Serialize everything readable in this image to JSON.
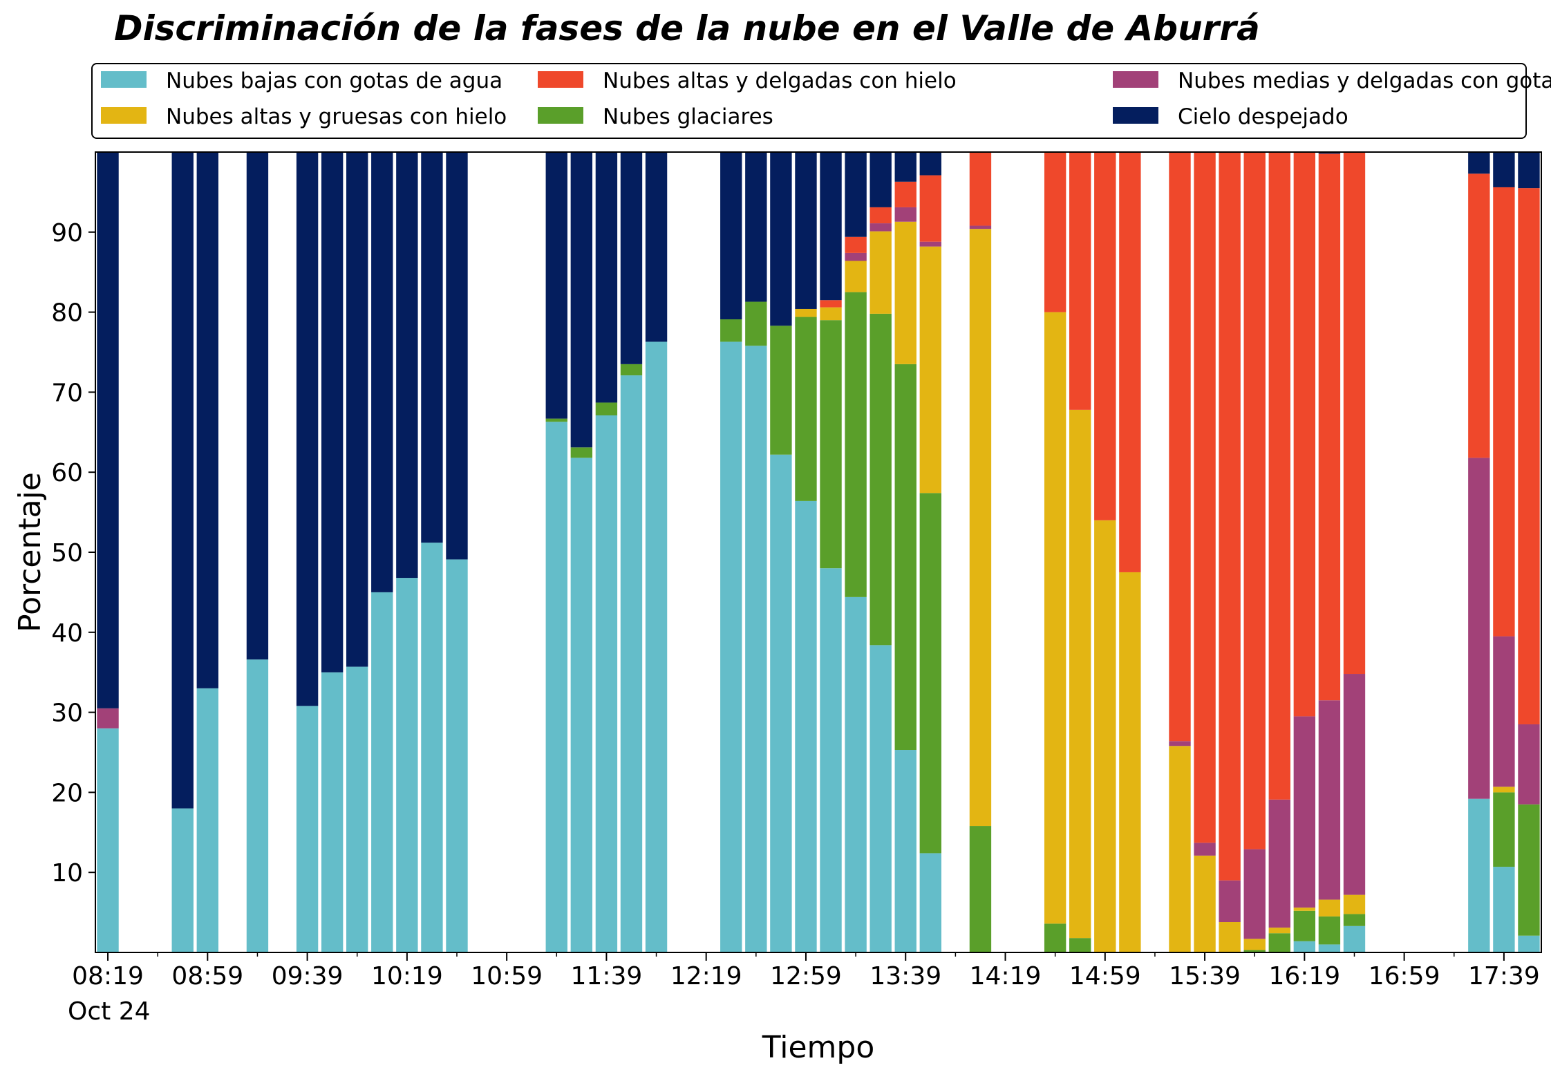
{
  "chart_data": {
    "type": "bar",
    "stacked": true,
    "title": "Discriminación de la fases de la nube en el Valle de Aburrá",
    "xlabel": "Tiempo",
    "ylabel": "Porcentaje",
    "ylim": [
      0,
      100
    ],
    "yticks": [
      10,
      20,
      30,
      40,
      50,
      60,
      70,
      80,
      90
    ],
    "xlim": [
      "08:14",
      "17:54"
    ],
    "bar_interval_minutes": 10,
    "xticks": [
      "08:19",
      "08:59",
      "09:39",
      "10:19",
      "10:59",
      "11:39",
      "12:19",
      "12:59",
      "13:39",
      "14:19",
      "14:59",
      "15:39",
      "16:19",
      "16:59",
      "17:39"
    ],
    "x_date_label": "Oct 24",
    "legend": {
      "placement": "top",
      "columns": 3
    },
    "grid": false,
    "series": [
      {
        "name": "Nubes bajas con gotas de agua",
        "color": "#64bdc9"
      },
      {
        "name": "Nubes glaciares",
        "color": "#5a9f2a"
      },
      {
        "name": "Nubes altas y gruesas con hielo",
        "color": "#e3b513"
      },
      {
        "name": "Nubes medias y delgadas con gotas de agua",
        "color": "#a24178"
      },
      {
        "name": "Nubes altas y delgadas con hielo",
        "color": "#ef482b"
      },
      {
        "name": "Cielo despejado",
        "color": "#041e5e"
      }
    ],
    "legend_order": [
      0,
      2,
      4,
      1,
      3,
      5
    ],
    "times": [
      "08:19",
      "08:39",
      "08:49",
      "08:59",
      "09:19",
      "09:29",
      "09:39",
      "09:49",
      "09:59",
      "10:09",
      "10:19",
      "10:29",
      "10:39",
      "10:49",
      "10:59",
      "11:09",
      "11:19",
      "11:29",
      "11:39",
      "11:49",
      "11:59",
      "12:09",
      "12:19",
      "12:29",
      "12:39",
      "12:49",
      "12:59",
      "13:09",
      "13:19",
      "13:29",
      "13:39",
      "13:49",
      "13:59",
      "14:09",
      "14:19",
      "14:29",
      "14:39",
      "14:49",
      "14:59",
      "15:09",
      "15:19",
      "15:29",
      "15:39",
      "15:49",
      "15:59",
      "16:09",
      "16:19",
      "16:29",
      "16:39",
      "16:49",
      "16:59",
      "17:09",
      "17:29",
      "17:39",
      "17:49"
    ],
    "values": [
      [
        28,
        0,
        0,
        2.5,
        0,
        69.5
      ],
      [
        18,
        0,
        0,
        0,
        0,
        82
      ],
      [
        33,
        0,
        0,
        0,
        0,
        67
      ],
      [
        36.6,
        0,
        0,
        0,
        0,
        63.4
      ],
      [
        30.8,
        0,
        0,
        0,
        0,
        69.2
      ],
      [
        35,
        0,
        0,
        0,
        0,
        65
      ],
      [
        35.7,
        0,
        0,
        0,
        0,
        64.3
      ],
      [
        45,
        0,
        0,
        0,
        0,
        55
      ],
      [
        46.8,
        0,
        0,
        0,
        0,
        53.2
      ],
      [
        51.2,
        0,
        0,
        0,
        0,
        48.8
      ],
      [
        49.1,
        0,
        0,
        0,
        0,
        50.9
      ],
      [
        66.3,
        0.4,
        0,
        0,
        0,
        33.3
      ],
      [
        61.8,
        1.3,
        0,
        0,
        0,
        36.9
      ],
      [
        67.1,
        1.6,
        0,
        0,
        0,
        31.3
      ],
      [
        72.1,
        1.4,
        0,
        0,
        0,
        26.5
      ],
      [
        76.3,
        0,
        0,
        0,
        0,
        23.7
      ],
      [
        76.3,
        2.8,
        0,
        0,
        0,
        20.9
      ],
      [
        75.8,
        5.5,
        0,
        0,
        0,
        18.7
      ],
      [
        62.2,
        16.1,
        0,
        0,
        0,
        21.7
      ],
      [
        56.4,
        23,
        1,
        0,
        0,
        19.6
      ],
      [
        48,
        31,
        1.6,
        0,
        0.9,
        18.5
      ],
      [
        44.4,
        38.1,
        3.9,
        1,
        2,
        10.6
      ],
      [
        38.4,
        41.4,
        10.3,
        1,
        2,
        6.9
      ],
      [
        25.3,
        48.2,
        17.8,
        1.8,
        3.2,
        3.7
      ],
      [
        12.4,
        45,
        30.8,
        0.6,
        8.3,
        2.9
      ],
      [
        0,
        15.8,
        74.6,
        0.4,
        9.2,
        0
      ],
      [
        0,
        3.6,
        76.4,
        0,
        20,
        0
      ],
      [
        0,
        1.8,
        66,
        0,
        32.2,
        0
      ],
      [
        0,
        0,
        54,
        0,
        46,
        0
      ],
      [
        0,
        0,
        47.5,
        0,
        52.5,
        0
      ],
      [
        0,
        0,
        25.8,
        0.6,
        73.6,
        0
      ],
      [
        0,
        0,
        12.1,
        1.6,
        86.3,
        0
      ],
      [
        0,
        0,
        3.8,
        5.2,
        91,
        0
      ],
      [
        0,
        0.3,
        1.4,
        11.2,
        87.1,
        0
      ],
      [
        0,
        2.4,
        0.7,
        16,
        80.9,
        0
      ],
      [
        1.4,
        3.8,
        0.4,
        23.9,
        70.5,
        0
      ],
      [
        1,
        3.5,
        2.1,
        24.9,
        68.3,
        0.2
      ],
      [
        3.3,
        1.5,
        2.4,
        27.6,
        65.2,
        0
      ],
      [
        19.2,
        0,
        0,
        42.6,
        35.5,
        2.7
      ],
      [
        10.7,
        9.3,
        0.7,
        18.8,
        56.1,
        4.4
      ],
      [
        2.1,
        16.4,
        0,
        10,
        67,
        4.5
      ]
    ],
    "series_by_time_index": [
      0,
      2,
      3,
      4,
      6,
      7,
      8,
      9,
      10,
      11,
      12,
      16,
      17,
      18,
      19,
      20,
      23,
      24,
      25,
      26,
      27,
      28,
      29,
      30,
      31,
      33,
      36,
      37,
      38,
      39,
      41,
      42,
      43,
      44,
      45,
      46,
      47,
      48,
      52,
      53,
      54
    ]
  }
}
